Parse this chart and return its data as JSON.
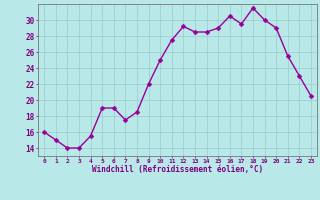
{
  "x": [
    0,
    1,
    2,
    3,
    4,
    5,
    6,
    7,
    8,
    9,
    10,
    11,
    12,
    13,
    14,
    15,
    16,
    17,
    18,
    19,
    20,
    21,
    22,
    23
  ],
  "y": [
    16,
    15,
    14,
    14,
    15.5,
    19,
    19,
    17.5,
    18.5,
    22,
    25,
    27.5,
    29.2,
    28.5,
    28.5,
    29,
    30.5,
    29.5,
    31.5,
    30,
    29,
    25.5,
    23,
    20.5
  ],
  "line_color": "#990099",
  "marker_color": "#990099",
  "bg_color": "#b8e8e8",
  "grid_color": "#99cccc",
  "axis_label_color": "#800080",
  "tick_color": "#800080",
  "xlabel": "Windchill (Refroidissement éolien,°C)",
  "ylim": [
    13,
    32
  ],
  "xlim": [
    -0.5,
    23.5
  ],
  "yticks": [
    14,
    16,
    18,
    20,
    22,
    24,
    26,
    28,
    30
  ],
  "xticks": [
    0,
    1,
    2,
    3,
    4,
    5,
    6,
    7,
    8,
    9,
    10,
    11,
    12,
    13,
    14,
    15,
    16,
    17,
    18,
    19,
    20,
    21,
    22,
    23
  ]
}
